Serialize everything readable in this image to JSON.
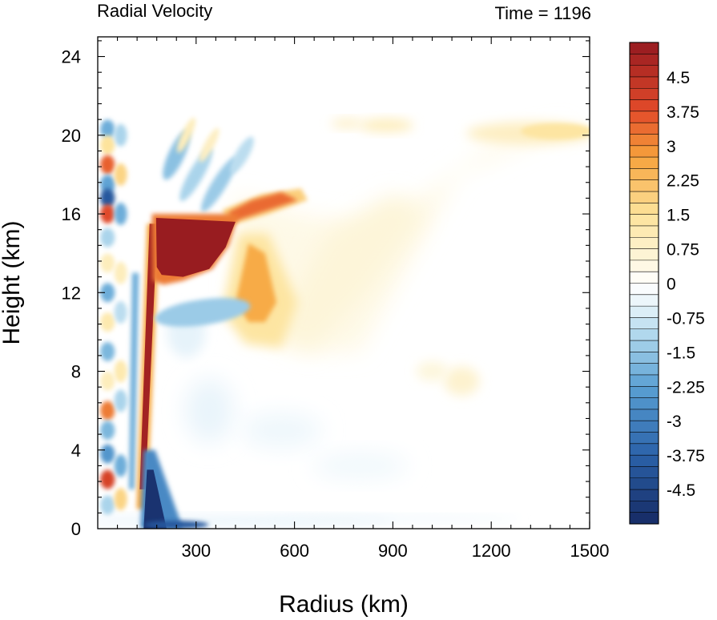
{
  "chart_data": {
    "type": "heatmap",
    "title_left": "Radial Velocity",
    "title_right": "Time = 1196",
    "xlabel": "Radius (km)",
    "ylabel": "Height (km)",
    "xlim": [
      0,
      1500
    ],
    "ylim": [
      0,
      25
    ],
    "x_ticks": [
      300,
      600,
      900,
      1200,
      1500
    ],
    "x_tick_labels": [
      "300",
      "600",
      "900",
      "1200",
      "1500"
    ],
    "y_ticks": [
      0,
      4,
      8,
      12,
      16,
      20,
      24
    ],
    "y_tick_labels": [
      "0",
      "4",
      "8",
      "12",
      "16",
      "20",
      "24"
    ],
    "colorbar": {
      "min": -5.25,
      "max": 5.25,
      "step": 0.25,
      "labels": [
        "4.5",
        "3.75",
        "3",
        "2.25",
        "1.5",
        "0.75",
        "0",
        "-0.75",
        "-1.5",
        "-2.25",
        "-3",
        "-3.75",
        "-4.5"
      ],
      "label_values": [
        4.5,
        3.75,
        3,
        2.25,
        1.5,
        0.75,
        0,
        -0.75,
        -1.5,
        -2.25,
        -3,
        -3.75,
        -4.5
      ],
      "colors": {
        "neg_max": "#162a64",
        "neg_strong": "#2b62a9",
        "neg_mid": "#5aa0d3",
        "neg_light": "#a6d2ea",
        "neg_faint": "#e6f3fa",
        "zero": "#ffffff",
        "pos_faint": "#fdf6dc",
        "pos_light": "#fde39b",
        "pos_mid": "#f6a33c",
        "pos_strong": "#e34b2a",
        "pos_max": "#951a20"
      }
    },
    "features": [
      {
        "name": "upper-outflow-core",
        "r": [
          170,
          420
        ],
        "z": [
          12.8,
          15.8
        ],
        "value": 5.0
      },
      {
        "name": "outflow-tail",
        "r": [
          420,
          640
        ],
        "z": [
          15.6,
          16.8
        ],
        "value": 3.0
      },
      {
        "name": "mid-level-outflow",
        "r": [
          380,
          620
        ],
        "z": [
          9.5,
          14.5
        ],
        "value": 2.3
      },
      {
        "name": "eyewall-updraft-band",
        "r": [
          110,
          180
        ],
        "z": [
          0.5,
          15
        ],
        "value": 4.5
      },
      {
        "name": "low-level-inflow",
        "r": [
          130,
          230
        ],
        "z": [
          0,
          3.5
        ],
        "value": -4.5
      },
      {
        "name": "upper-right-outflow",
        "r": [
          1180,
          1480
        ],
        "z": [
          19.5,
          20.8
        ],
        "value": 1.5
      },
      {
        "name": "mid-upper-outflow",
        "r": [
          850,
          920
        ],
        "z": [
          20,
          21
        ],
        "value": 1.2
      }
    ]
  }
}
